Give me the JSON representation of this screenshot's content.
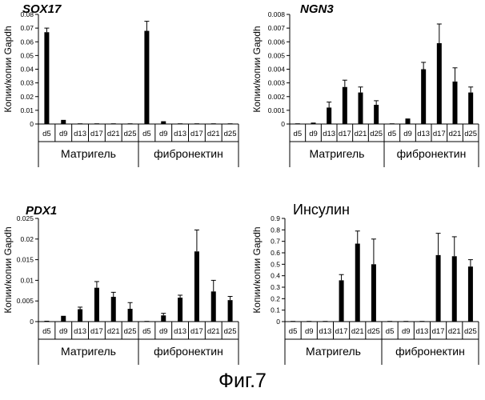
{
  "figure_caption": "Фиг.7",
  "chart_data": [
    {
      "type": "bar",
      "title": "SOX17",
      "title_style": "bold-italic",
      "ylabel": "Копии/копии Gapdh",
      "ylim": [
        0,
        0.08
      ],
      "yticks": [
        "0",
        "0.01",
        "0.02",
        "0.03",
        "0.04",
        "0.05",
        "0.06",
        "0.07",
        "0.08"
      ],
      "categories": [
        "d5",
        "d9",
        "d13",
        "d17",
        "d21",
        "d25",
        "d5",
        "d9",
        "d13",
        "d17",
        "d21",
        "d25"
      ],
      "groups": [
        "Матригель",
        "фибронектин"
      ],
      "values": [
        0.067,
        0.003,
        0,
        0,
        0,
        0,
        0.068,
        0.002,
        0,
        0,
        0,
        0
      ],
      "errors": [
        0.003,
        0,
        0,
        0,
        0,
        0,
        0.007,
        0,
        0,
        0,
        0,
        0
      ]
    },
    {
      "type": "bar",
      "title": "NGN3",
      "title_style": "bold-italic",
      "ylabel": "Копии/копии Gapdh",
      "ylim": [
        0,
        0.008
      ],
      "yticks": [
        "0",
        "0.001",
        "0.002",
        "0.003",
        "0.004",
        "0.005",
        "0.006",
        "0.007",
        "0.008"
      ],
      "categories": [
        "d5",
        "d9",
        "d13",
        "d17",
        "d21",
        "d25",
        "d5",
        "d9",
        "d13",
        "d17",
        "d21",
        "d25"
      ],
      "groups": [
        "Матригель",
        "фибронектин"
      ],
      "values": [
        0,
        0.0001,
        0.0012,
        0.0027,
        0.0023,
        0.0014,
        0,
        0.0004,
        0.004,
        0.0059,
        0.0031,
        0.0023
      ],
      "errors": [
        0,
        0,
        0.0004,
        0.0005,
        0.0004,
        0.0003,
        0,
        0,
        0.0005,
        0.0014,
        0.001,
        0.0004
      ]
    },
    {
      "type": "bar",
      "title": "PDX1",
      "title_style": "bold-italic",
      "ylabel": "Копии/копии Gapdh",
      "ylim": [
        0,
        0.025
      ],
      "yticks": [
        "0",
        "0.005",
        "0.01",
        "0.015",
        "0.02",
        "0.025"
      ],
      "categories": [
        "d5",
        "d9",
        "d13",
        "d17",
        "d21",
        "d25",
        "d5",
        "d9",
        "d13",
        "d17",
        "d21",
        "d25"
      ],
      "groups": [
        "Матригель",
        "фибронектин"
      ],
      "values": [
        0.0002,
        0.0014,
        0.003,
        0.0082,
        0.006,
        0.0031,
        0,
        0.0015,
        0.0058,
        0.017,
        0.0073,
        0.0052
      ],
      "errors": [
        0,
        0,
        0.0005,
        0.0015,
        0.0011,
        0.0015,
        0,
        0.0005,
        0.0006,
        0.0052,
        0.0027,
        0.0009
      ]
    },
    {
      "type": "bar",
      "title": "Инсулин",
      "title_style": "regular",
      "ylabel": "Копии/копии Gapdh",
      "ylim": [
        0,
        0.9
      ],
      "yticks": [
        "0",
        "0.1",
        "0.2",
        "0.3",
        "0.4",
        "0.5",
        "0.6",
        "0.7",
        "0.8",
        "0.9"
      ],
      "categories": [
        "d5",
        "d9",
        "d13",
        "d17",
        "d21",
        "d25",
        "d5",
        "d9",
        "d13",
        "d17",
        "d21",
        "d25"
      ],
      "groups": [
        "Матригель",
        "фибронектин"
      ],
      "values": [
        0,
        0,
        0,
        0.36,
        0.68,
        0.5,
        0,
        0,
        0,
        0.58,
        0.57,
        0.48
      ],
      "errors": [
        0,
        0,
        0,
        0.05,
        0.11,
        0.22,
        0,
        0,
        0,
        0.19,
        0.17,
        0.06
      ]
    }
  ]
}
